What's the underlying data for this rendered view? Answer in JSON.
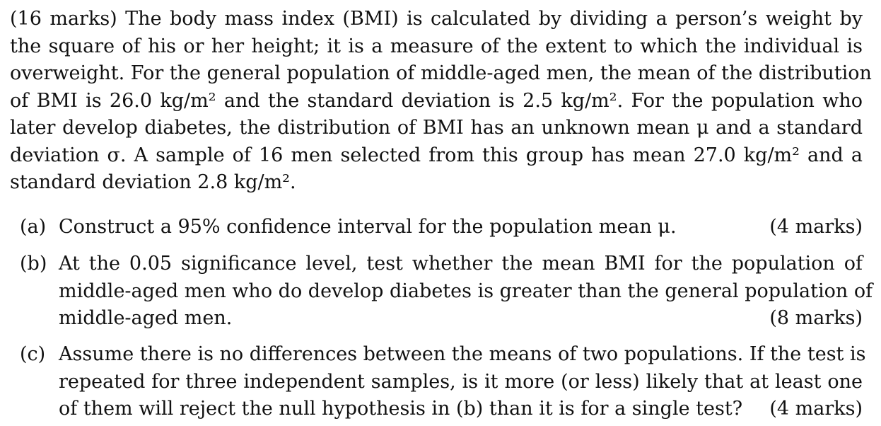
{
  "intro": {
    "lines": [
      "(16 marks) The body mass index (BMI) is calculated by dividing a person’s weight by",
      "the square of his or her height; it is a measure of the extent to which the individual is",
      "overweight. For the general population of middle-aged men, the mean of the distribution",
      "of BMI is 26.0 kg/m² and the standard deviation is 2.5 kg/m². For the population who",
      "later develop diabetes, the distribution of BMI has an unknown mean μ and a standard",
      "deviation σ. A sample of 16 men selected from this group has mean 27.0 kg/m² and a",
      "standard deviation 2.8 kg/m²."
    ]
  },
  "parts": {
    "a": {
      "label": "(a)",
      "text": "Construct a 95% confidence interval for the population mean μ.",
      "marks": "(4 marks)"
    },
    "b": {
      "label": "(b)",
      "lines": [
        "At the 0.05 significance level, test whether the mean BMI for the population of",
        "middle-aged men who do develop diabetes is greater than the general population of",
        "middle-aged men."
      ],
      "marks": "(8 marks)"
    },
    "c": {
      "label": "(c)",
      "lines": [
        "Assume there is no differences between the means of two populations. If the test is",
        "repeated for three independent samples, is it more (or less) likely that at least one",
        "of them will reject the null hypothesis in (b) than it is for a single test?"
      ],
      "marks": "(4 marks)"
    }
  }
}
